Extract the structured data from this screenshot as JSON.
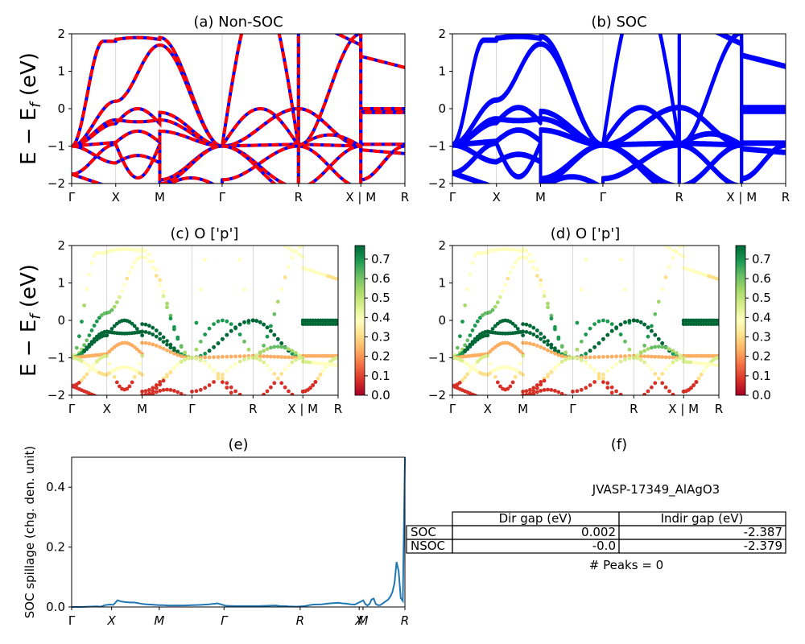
{
  "chart_data": [
    {
      "type": "line",
      "panel": "a",
      "title": "(a) Non-SOC",
      "ylabel": "E − E_f (eV)",
      "ylim": [
        -2,
        2
      ],
      "yticks": [
        "−2",
        "−1",
        "0",
        "1",
        "2"
      ],
      "kpoint_labels": [
        "Γ",
        "X",
        "M",
        "Γ",
        "R",
        "X | M",
        "R"
      ],
      "kpoint_positions": [
        0,
        0.5,
        1.0,
        1.707,
        2.573,
        3.28,
        3.78
      ],
      "colors": {
        "band": "#0000ff",
        "overlay": "#ff0000"
      }
    },
    {
      "type": "line",
      "panel": "b",
      "title": "(b) SOC",
      "ylim": [
        -2,
        2
      ],
      "yticks": [
        "−2",
        "−1",
        "0",
        "1",
        "2"
      ],
      "kpoint_labels": [
        "Γ",
        "X",
        "M",
        "Γ",
        "R",
        "X | M",
        "R"
      ],
      "kpoint_positions": [
        0,
        0.5,
        1.0,
        1.707,
        2.573,
        3.28,
        3.78
      ],
      "colors": {
        "band": "#0000ff"
      }
    },
    {
      "type": "scatter",
      "panel": "c",
      "title": "(c)  O ['p']",
      "ylabel": "E − E_f (eV)",
      "ylim": [
        -2,
        2
      ],
      "yticks": [
        "−2",
        "−1",
        "0",
        "1",
        "2"
      ],
      "kpoint_labels": [
        "Γ",
        "X",
        "M",
        "Γ",
        "R",
        "X | M",
        "R"
      ],
      "kpoint_positions": [
        0,
        0.5,
        1.0,
        1.707,
        2.573,
        3.28,
        3.78
      ],
      "colorbar": {
        "min": 0.0,
        "max": 0.77,
        "ticks": [
          "0.0",
          "0.1",
          "0.2",
          "0.3",
          "0.4",
          "0.5",
          "0.6",
          "0.7"
        ],
        "colormap": "RdYlGn"
      }
    },
    {
      "type": "scatter",
      "panel": "d",
      "title": "(d) O ['p']",
      "ylim": [
        -2,
        2
      ],
      "yticks": [
        "−2",
        "−1",
        "0",
        "1",
        "2"
      ],
      "kpoint_labels": [
        "Γ",
        "X",
        "M",
        "Γ",
        "R",
        "X | M",
        "R"
      ],
      "kpoint_positions": [
        0,
        0.5,
        1.0,
        1.707,
        2.573,
        3.28,
        3.78
      ],
      "colorbar": {
        "min": 0.0,
        "max": 0.77,
        "ticks": [
          "0.0",
          "0.1",
          "0.2",
          "0.3",
          "0.4",
          "0.5",
          "0.6",
          "0.7"
        ],
        "colormap": "RdYlGn"
      }
    },
    {
      "type": "line",
      "panel": "e",
      "title": "(e)",
      "ylabel": "SOC spillage (chg. den. unit)",
      "ylim": [
        0,
        0.5
      ],
      "yticks": [
        "0.0",
        "0.2",
        "0.4"
      ],
      "xlim": [
        0,
        160
      ],
      "kpoint_labels": [
        "Γ",
        "X",
        "M",
        "Γ",
        "R",
        "X",
        "M",
        "R"
      ],
      "kpoint_positions": [
        0,
        21,
        46,
        80,
        120,
        151,
        153,
        175
      ],
      "color": "#1f77b4",
      "x": [
        0,
        4,
        8,
        12,
        14,
        16,
        18,
        20,
        22,
        24,
        26,
        28,
        30,
        32,
        34,
        36,
        38,
        40,
        42,
        44,
        46,
        50,
        54,
        58,
        62,
        66,
        70,
        74,
        78,
        80,
        82,
        86,
        90,
        94,
        98,
        100,
        102,
        104,
        108,
        112,
        114,
        116,
        120,
        124,
        128,
        130,
        132,
        134,
        136,
        138,
        140,
        141,
        142,
        143,
        144,
        145,
        146,
        147,
        148,
        149,
        150,
        151,
        152,
        153,
        154,
        155,
        156,
        157,
        158,
        159,
        160
      ],
      "y": [
        0,
        0,
        0.001,
        0.002,
        0.001,
        0.006,
        0.008,
        0.007,
        0.022,
        0.018,
        0.016,
        0.015,
        0.015,
        0.013,
        0.01,
        0.009,
        0.008,
        0.007,
        0.006,
        0.006,
        0.005,
        0.005,
        0.005,
        0.006,
        0.007,
        0.009,
        0.012,
        0.004,
        0.003,
        0.003,
        0.003,
        0.003,
        0.003,
        0.004,
        0.005,
        0.003,
        0.003,
        0.002,
        0.001,
        0.003,
        0.006,
        0.008,
        0.009,
        0.012,
        0.014,
        0.012,
        0.011,
        0.009,
        0.008,
        0.015,
        0.022,
        0.01,
        0.005,
        0.01,
        0.025,
        0.028,
        0.01,
        0.006,
        0.006,
        0.01,
        0.015,
        0.02,
        0.025,
        0.035,
        0.05,
        0.08,
        0.15,
        0.12,
        0.03,
        0.02,
        0.5
      ]
    }
  ],
  "table": {
    "title": "(f)",
    "material": "JVASP-17349_AlAgO3",
    "columns": [
      "Dir gap (eV)",
      "Indir gap (eV)"
    ],
    "rows": [
      {
        "label": "SOC",
        "dir": "0.002",
        "indir": "-2.387"
      },
      {
        "label": "NSOC",
        "dir": "-0.0",
        "indir": "-2.379"
      }
    ],
    "peaks": "# Peaks = 0"
  }
}
